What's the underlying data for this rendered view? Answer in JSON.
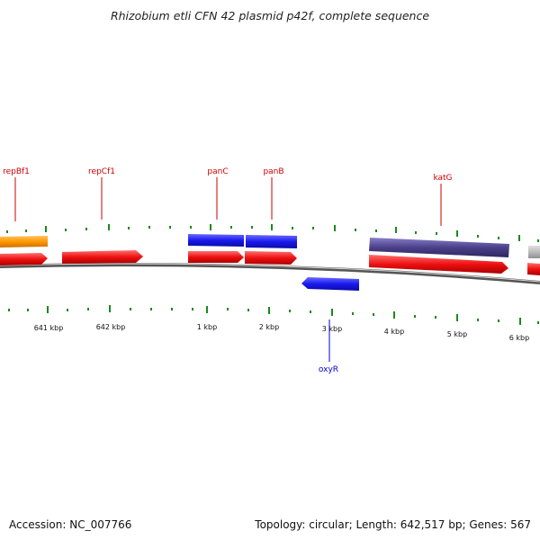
{
  "title": "Rhizobium etli CFN 42 plasmid p42f, complete sequence",
  "footer": {
    "accession": "Accession: NC_007766",
    "summary": "Topology: circular; Length: 642,517 bp; Genes: 567"
  },
  "gene_labels": [
    {
      "text": "repBf1",
      "strand": "+"
    },
    {
      "text": "repCf1",
      "strand": "+"
    },
    {
      "text": "panC",
      "strand": "+"
    },
    {
      "text": "panB",
      "strand": "+"
    },
    {
      "text": "katG",
      "strand": "+"
    },
    {
      "text": "oxyR",
      "strand": "-"
    }
  ],
  "scale_labels": [
    "641 kbp",
    "642 kbp",
    "1 kbp",
    "2 kbp",
    "3 kbp",
    "4 kbp",
    "5 kbp",
    "6 kbp"
  ],
  "colors": {
    "cds_forward": "#ee1111",
    "cds_reverse": "#1111dd",
    "gene_orange": "#ff9900",
    "gene_blue": "#1a1aee",
    "gene_purple": "#4a3f8a",
    "gene_grey": "#bbbbbb",
    "backbone": "#555555",
    "tick": "#1a8a1a",
    "label_forward": "#cc0000",
    "label_reverse": "#0000cc"
  }
}
